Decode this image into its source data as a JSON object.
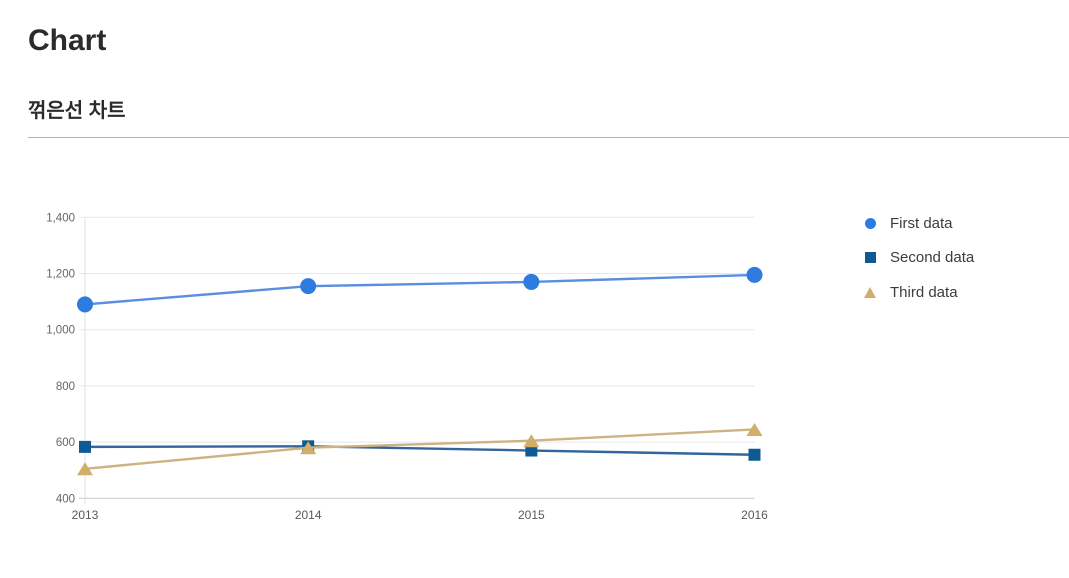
{
  "page": {
    "title": "Chart",
    "subtitle": "꺾은선 차트"
  },
  "theme": {
    "title_color": "#2B2B2B",
    "divider_color": "#B0B0B0",
    "legend_text_color": "#3C3C3C",
    "grid_color": "#E8E8E8",
    "baseline_color": "#C9C9C9",
    "axis_line_color": "#E0E0E0",
    "ytick_label_color": "#666666",
    "xtick_label_color": "#595959"
  },
  "chart_data": {
    "type": "line",
    "title": "",
    "xlabel": "",
    "ylabel": "",
    "categories": [
      "2013",
      "2014",
      "2015",
      "2016"
    ],
    "series": [
      {
        "name": "First data",
        "marker": "circle",
        "marker_color": "#2E7CE0",
        "line_color": "#5C8EE0",
        "values": [
          1090,
          1155,
          1170,
          1195
        ]
      },
      {
        "name": "Second data",
        "marker": "square",
        "marker_color": "#0E5A94",
        "line_color": "#31659B",
        "values": [
          583,
          585,
          570,
          555
        ]
      },
      {
        "name": "Third data",
        "marker": "triangle",
        "marker_color": "#D2AE6B",
        "line_color": "#CDB381",
        "values": [
          505,
          580,
          605,
          645
        ]
      }
    ],
    "ylim": [
      400,
      1400
    ],
    "ytick_step": 200,
    "ytick_labels": [
      "400",
      "600",
      "800",
      "1,000",
      "1,200",
      "1,400"
    ],
    "grid": "horizontal-only",
    "legend_position": "right"
  }
}
